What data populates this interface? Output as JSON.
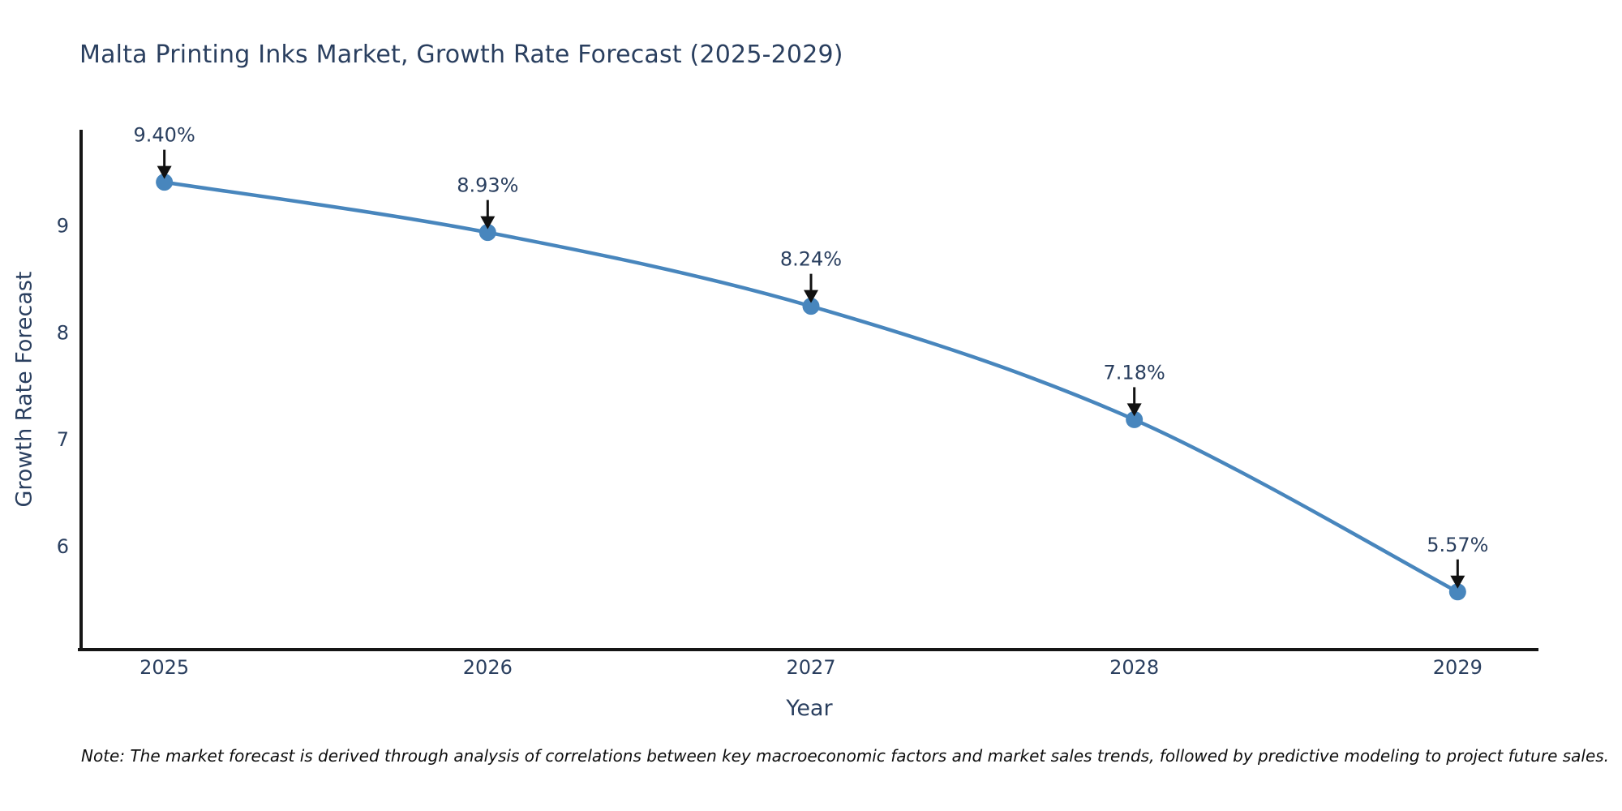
{
  "title": "Malta Printing Inks Market, Growth Rate Forecast (2025-2029)",
  "note": "Note: The market forecast is derived through analysis of correlations between key macroeconomic factors and market sales trends, followed by predictive modeling to project future sales.",
  "chart_data": {
    "type": "line",
    "title": "Malta Printing Inks Market, Growth Rate Forecast (2025-2029)",
    "xlabel": "Year",
    "ylabel": "Growth Rate Forecast",
    "x": [
      2025,
      2026,
      2027,
      2028,
      2029
    ],
    "values": [
      9.4,
      8.93,
      8.24,
      7.18,
      5.57
    ],
    "point_labels": [
      "9.40%",
      "8.93%",
      "8.24%",
      "7.18%",
      "5.57%"
    ],
    "xticks": [
      2025,
      2026,
      2027,
      2028,
      2029
    ],
    "yticks": [
      6,
      7,
      8,
      9
    ],
    "xlim": [
      2024.74,
      2029.25
    ],
    "ylim": [
      5.03,
      9.89
    ],
    "grid": false,
    "legend": false,
    "smooth": true,
    "colors": {
      "line": "#4886bd",
      "marker": "#4886bd",
      "axis_line": "#151515",
      "tick_label": "#2a3f5f",
      "annotation_text": "#2a3f5f",
      "annotation_arrow": "#111111",
      "background": "#ffffff"
    }
  }
}
